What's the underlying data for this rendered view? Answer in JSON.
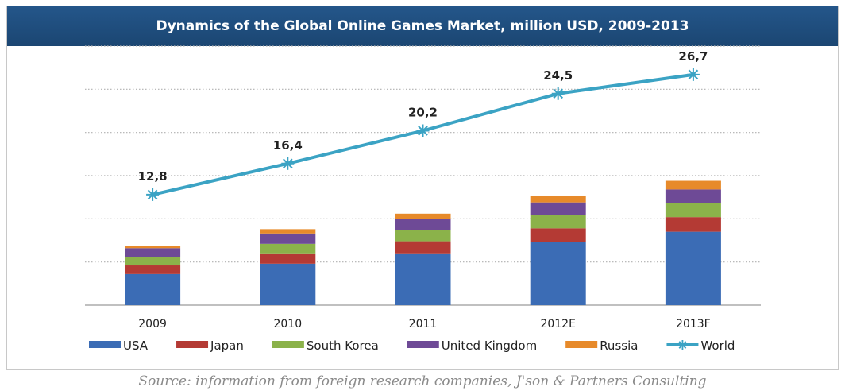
{
  "title": "Dynamics of the Global Online Games Market, million USD, 2009-2013",
  "source": "Source: information from foreign research companies, J'son & Partners Consulting",
  "chart_data": {
    "type": "bar",
    "stacked": true,
    "categories": [
      "2009",
      "2010",
      "2011",
      "2012E",
      "2013F"
    ],
    "ylim": [
      0,
      30
    ],
    "grid": true,
    "legend_position": "bottom",
    "series": [
      {
        "name": "USA",
        "type": "bar",
        "color": "#3b6cb5",
        "values": [
          3.6,
          4.8,
          6.0,
          7.3,
          8.5
        ]
      },
      {
        "name": "Japan",
        "type": "bar",
        "color": "#b43a34",
        "values": [
          1.0,
          1.2,
          1.4,
          1.6,
          1.7
        ]
      },
      {
        "name": "South Korea",
        "type": "bar",
        "color": "#8bb24a",
        "values": [
          1.0,
          1.1,
          1.3,
          1.5,
          1.6
        ]
      },
      {
        "name": "United Kingdom",
        "type": "bar",
        "color": "#6e4a96",
        "values": [
          1.0,
          1.2,
          1.3,
          1.5,
          1.6
        ]
      },
      {
        "name": "Russia",
        "type": "bar",
        "color": "#e78a2a",
        "values": [
          0.3,
          0.5,
          0.6,
          0.8,
          1.0
        ]
      },
      {
        "name": "World",
        "type": "line",
        "color": "#3ba3c4",
        "values": [
          12.8,
          16.4,
          20.2,
          24.5,
          26.7
        ],
        "labels": [
          "12,8",
          "16,4",
          "20,2",
          "24,5",
          "26,7"
        ]
      }
    ]
  }
}
